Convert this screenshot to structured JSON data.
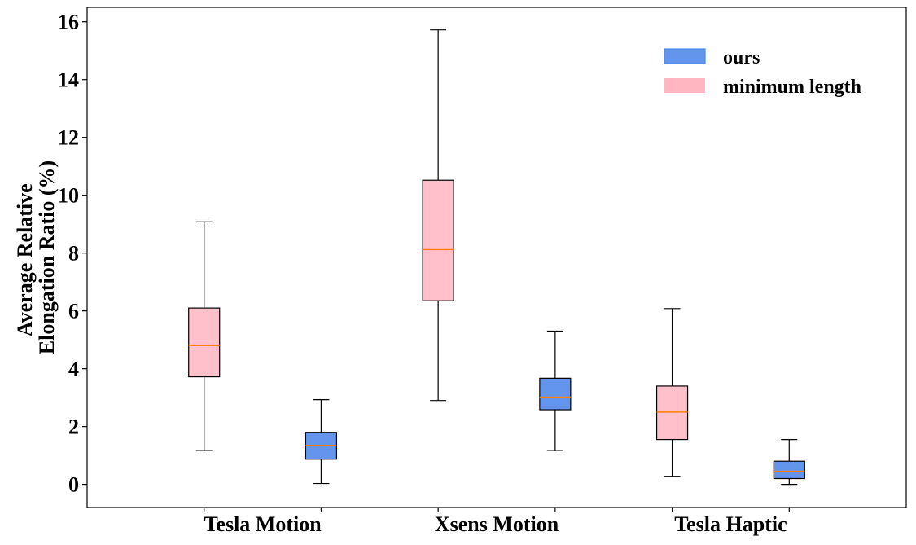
{
  "chart_data": {
    "type": "box",
    "title": "",
    "xlabel": "",
    "ylabel_lines": [
      "Average Relative",
      "Elongation Ratio (%)"
    ],
    "ylim": [
      -0.8,
      16.5
    ],
    "yticks": [
      0,
      2,
      4,
      6,
      8,
      10,
      12,
      14,
      16
    ],
    "categories": [
      "Tesla Motion",
      "Xsens Motion",
      "Tesla Haptic"
    ],
    "legend": {
      "placement": "top-right",
      "entries": [
        {
          "label": "ours",
          "series": "ours"
        },
        {
          "label": "minimum length",
          "series": "minimum"
        }
      ]
    },
    "series": [
      {
        "name": "minimum length",
        "key": "minimum",
        "fill": "#ffc0cb",
        "legend_fill": "#ffb6c1",
        "boxes": [
          {
            "category": "Tesla Motion",
            "whisker_low": 1.17,
            "q1": 3.72,
            "median": 4.8,
            "q3": 6.1,
            "whisker_high": 9.08
          },
          {
            "category": "Xsens Motion",
            "whisker_low": 2.9,
            "q1": 6.35,
            "median": 8.12,
            "q3": 10.52,
            "whisker_high": 15.72
          },
          {
            "category": "Tesla Haptic",
            "whisker_low": 0.28,
            "q1": 1.55,
            "median": 2.5,
            "q3": 3.4,
            "whisker_high": 6.08
          }
        ]
      },
      {
        "name": "ours",
        "key": "ours",
        "fill": "#6495ed",
        "legend_fill": "#6495ed",
        "boxes": [
          {
            "category": "Tesla Motion",
            "whisker_low": 0.03,
            "q1": 0.87,
            "median": 1.35,
            "q3": 1.8,
            "whisker_high": 2.93
          },
          {
            "category": "Xsens Motion",
            "whisker_low": 1.17,
            "q1": 2.58,
            "median": 3.02,
            "q3": 3.67,
            "whisker_high": 5.3
          },
          {
            "category": "Tesla Haptic",
            "whisker_low": 0.0,
            "q1": 0.2,
            "median": 0.45,
            "q3": 0.8,
            "whisker_high": 1.55
          }
        ]
      }
    ],
    "colors": {
      "median": "#ff7f0e",
      "edge": "#000000",
      "legend_edge_ours": "#4a86e8"
    }
  }
}
